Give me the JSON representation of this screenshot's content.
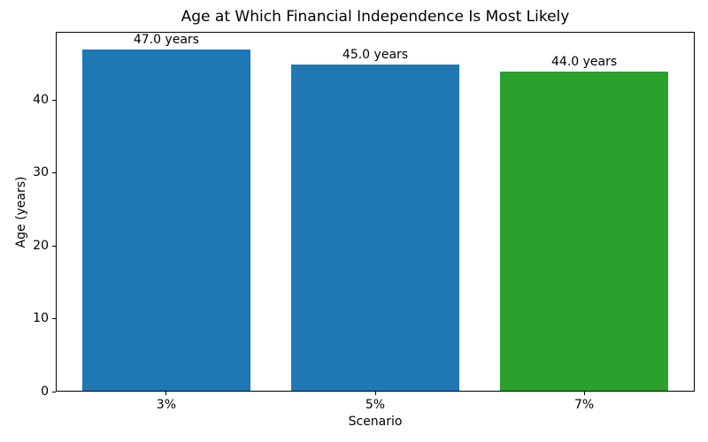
{
  "chart_data": {
    "type": "bar",
    "title": "Age at Which Financial Independence Is Most Likely",
    "xlabel": "Scenario",
    "ylabel": "Age (years)",
    "categories": [
      "3%",
      "5%",
      "7%"
    ],
    "values": [
      47.0,
      45.0,
      44.0
    ],
    "bar_labels": [
      "47.0 years",
      "45.0 years",
      "44.0 years"
    ],
    "bar_colors": [
      "#1f77b4",
      "#1f77b4",
      "#2ca02c"
    ],
    "ylim": [
      0,
      49.35
    ],
    "yticks": [
      0,
      10,
      20,
      30,
      40
    ],
    "grid": false,
    "legend_position": "none",
    "background_color": "#ffffff",
    "spine_color": "#000000"
  }
}
